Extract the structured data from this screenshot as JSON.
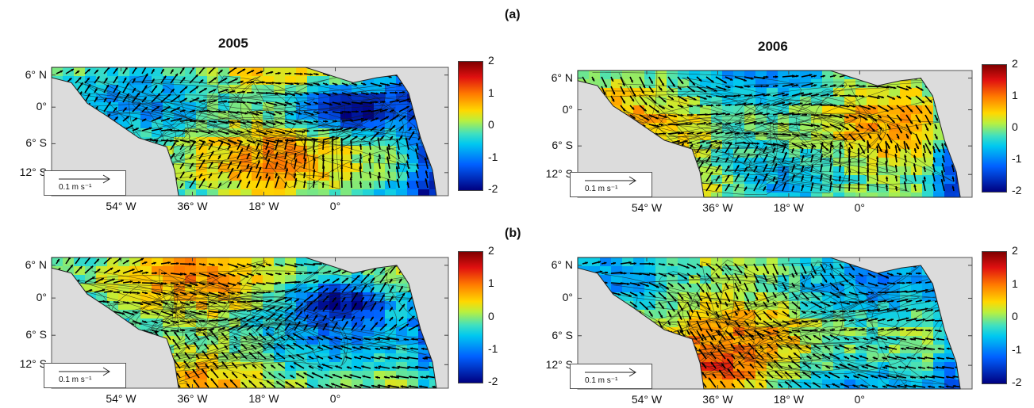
{
  "labels": {
    "row_a": "(a)",
    "row_b": "(b)",
    "year_left": "2005",
    "year_right": "2006"
  },
  "axes": {
    "lat_ticks": [
      "6° N",
      "0°",
      "6° S",
      "12° S"
    ],
    "lon_ticks": [
      "54° W",
      "36° W",
      "18° W",
      "0°"
    ]
  },
  "colorbar": {
    "ticks": [
      "2",
      "1",
      "0",
      "-1",
      "-2"
    ],
    "range": [
      -2,
      2
    ],
    "colormap": "jet"
  },
  "scale_arrow": {
    "label": "0.1 m s⁻¹"
  },
  "map_style": {
    "land_color": "#dcdcdc",
    "arrow_color": "#000000",
    "contour_color": "#1a1a1a"
  },
  "panels": [
    {
      "row": "a",
      "year": "2005"
    },
    {
      "row": "a",
      "year": "2006"
    },
    {
      "row": "b",
      "year": "2005"
    },
    {
      "row": "b",
      "year": "2006"
    }
  ]
}
